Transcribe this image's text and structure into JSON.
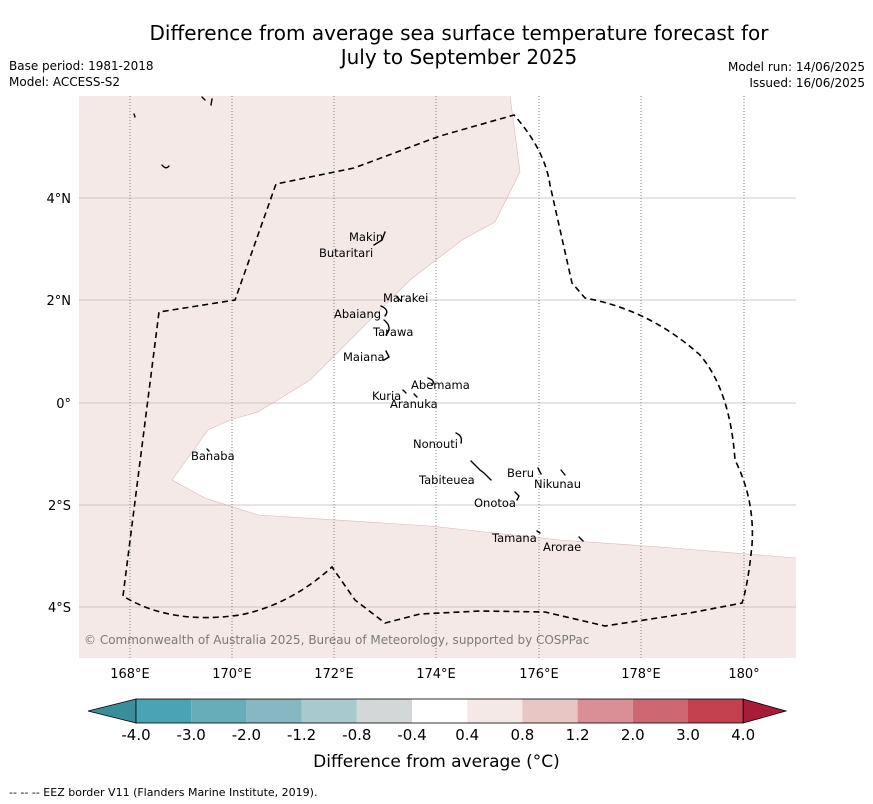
{
  "title_line1": "Difference from average sea surface temperature forecast for",
  "title_line2": "July to September 2025",
  "meta": {
    "base_period": "Base period: 1981-2018",
    "model": "Model: ACCESS-S2",
    "model_run": "Model run: 14/06/2025",
    "issued": "Issued: 16/06/2025"
  },
  "map": {
    "copyright": "© Commonwealth of Australia 2025, Bureau of Meteorology, supported by COSPPac",
    "lon_labels": [
      "168°E",
      "170°E",
      "172°E",
      "174°E",
      "176°E",
      "178°E",
      "180°"
    ],
    "lat_labels": [
      "4°N",
      "2°N",
      "0°",
      "2°S",
      "4°S"
    ],
    "islands": [
      "Makin",
      "Butaritari",
      "Marakei",
      "Abaiang",
      "Tarawa",
      "Maiana",
      "Abemama",
      "Kuria",
      "Aranuka",
      "Banaba",
      "Nonouti",
      "Tabiteuea",
      "Beru",
      "Nikunau",
      "Onotoa",
      "Tamana",
      "Arorae"
    ],
    "colors": {
      "region_fill": "#f5e9e8",
      "region_edge": "#d9b8b8",
      "grid": "#c8b4b8",
      "eez": "#000000"
    }
  },
  "colorbar": {
    "ticks": [
      "-4.0",
      "-3.0",
      "-2.0",
      "-1.2",
      "-0.8",
      "-0.4",
      "0.4",
      "0.8",
      "1.2",
      "2.0",
      "3.0",
      "4.0"
    ],
    "colors": [
      "#3a8e9c",
      "#49a3b2",
      "#67adb9",
      "#87b8c2",
      "#a8c9cd",
      "#d3d7d7",
      "#ffffff",
      "#f5e9e8",
      "#e8c6c3",
      "#d98f95",
      "#cd6873",
      "#c3414f",
      "#a81c3a"
    ],
    "label": "Difference from average (°C)"
  },
  "credit": "--  --  -- EEZ border V11 (Flanders Marine Institute, 2019)."
}
